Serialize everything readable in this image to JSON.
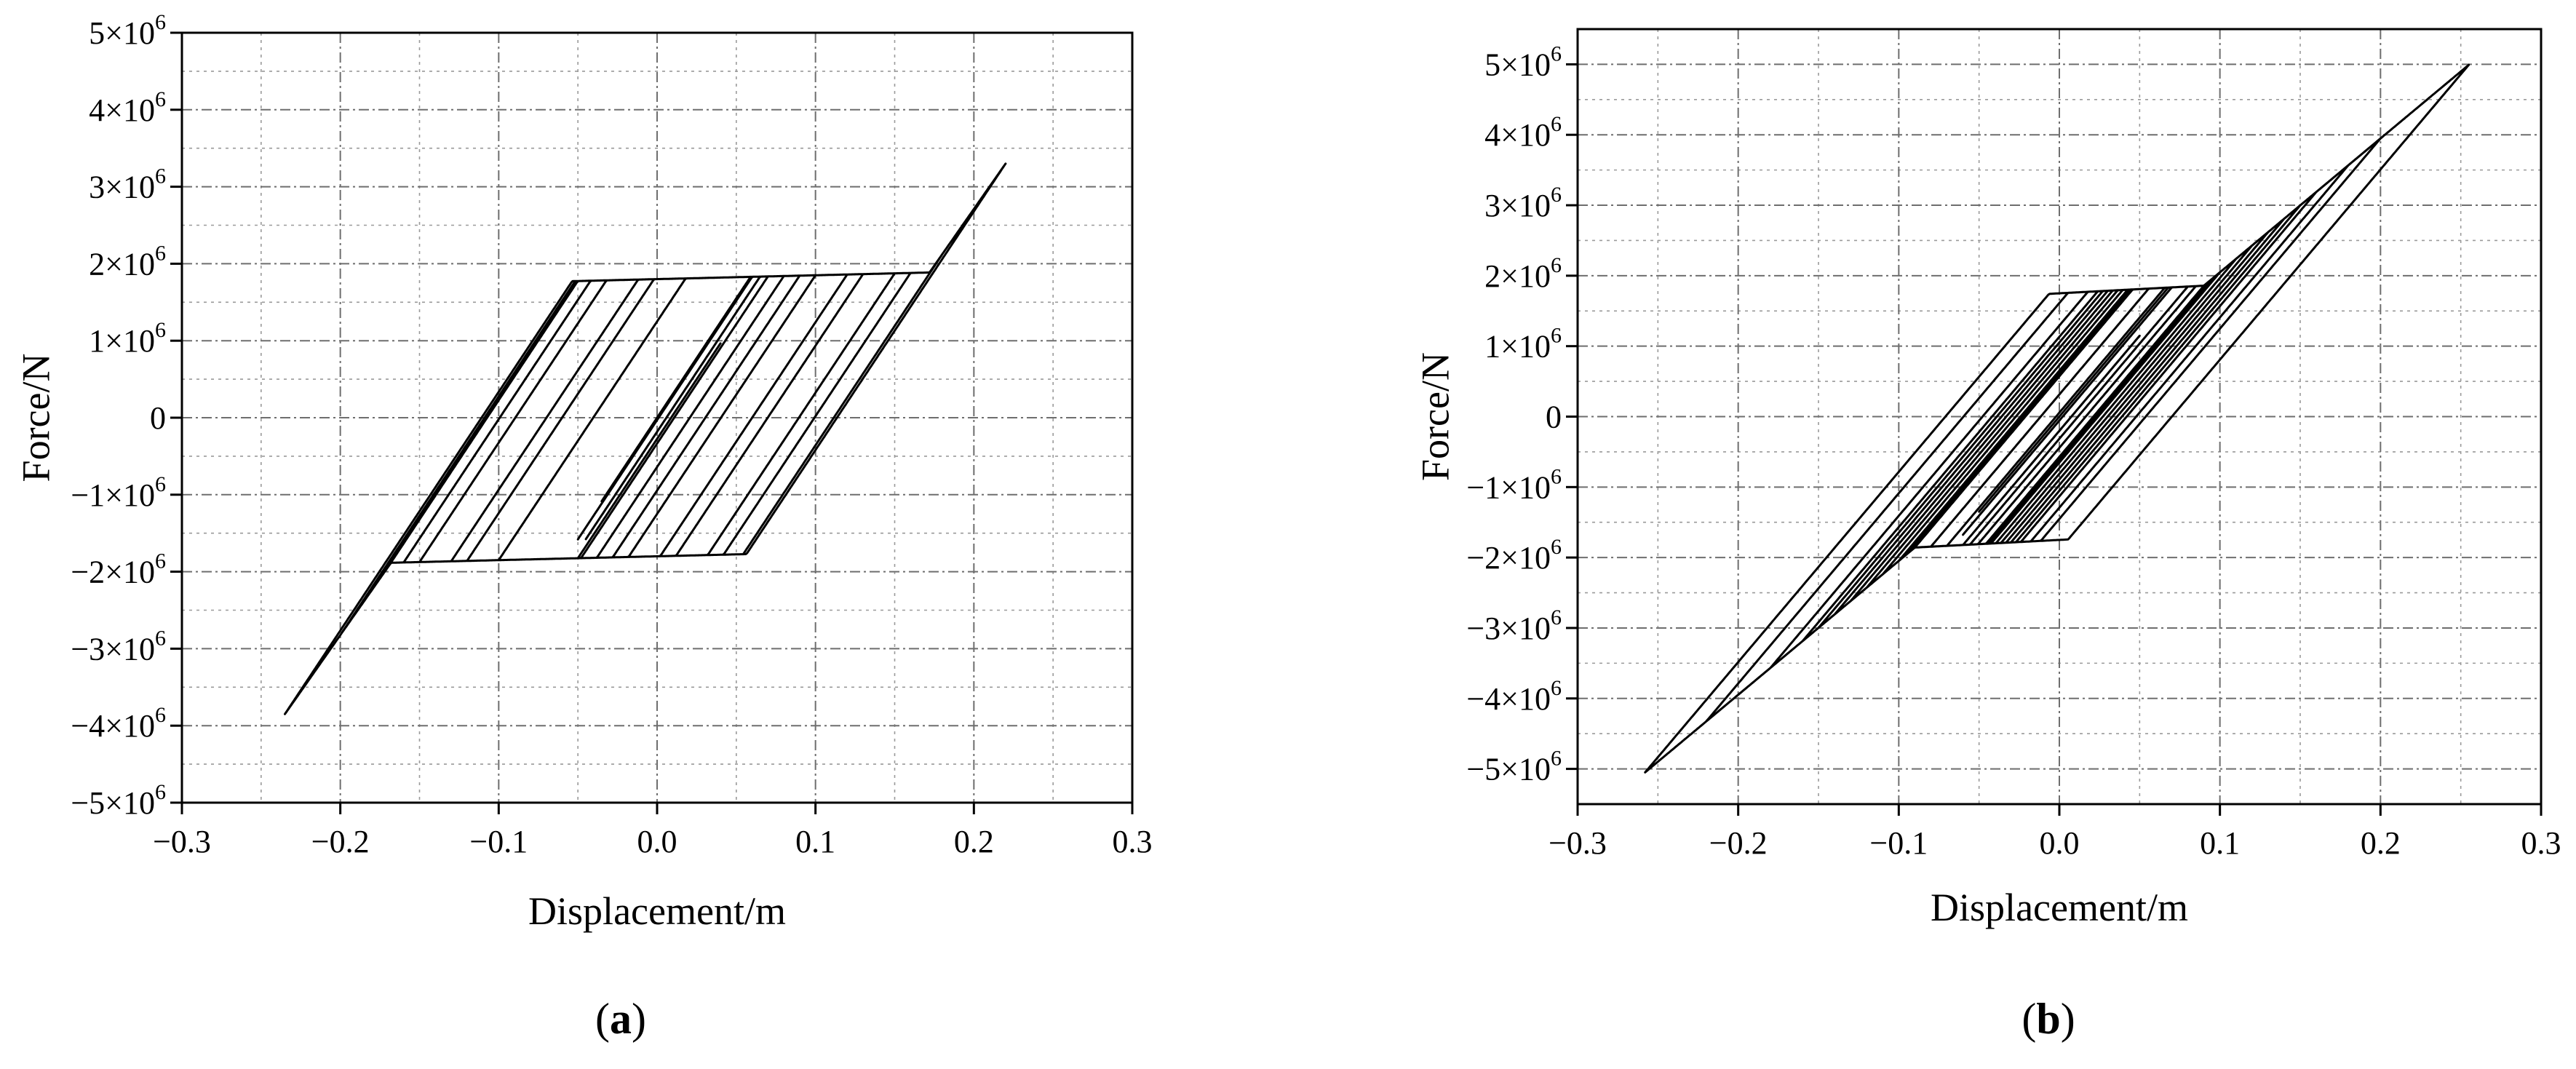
{
  "chart_data": [
    {
      "type": "line",
      "panel_label": "a",
      "xlabel": "Displacement/m",
      "ylabel": "Force/N",
      "xlim": [
        -0.3,
        0.3
      ],
      "ylim": [
        -5000000,
        5000000
      ],
      "x_ticks": [
        -0.3,
        -0.2,
        -0.1,
        0.0,
        0.1,
        0.2,
        0.3
      ],
      "x_tick_labels": [
        "−0.3",
        "−0.2",
        "−0.1",
        "0.0",
        "0.1",
        "0.2",
        "0.3"
      ],
      "y_ticks": [
        -5000000,
        -4000000,
        -3000000,
        -2000000,
        -1000000,
        0,
        1000000,
        2000000,
        3000000,
        4000000,
        5000000
      ],
      "y_tick_mantissas": [
        "−5×10",
        "−4×10",
        "−3×10",
        "−2×10",
        "−1×10",
        "0",
        "1×10",
        "2×10",
        "3×10",
        "4×10",
        "5×10"
      ],
      "y_tick_exponents": [
        "6",
        "6",
        "6",
        "6",
        "6",
        "",
        "6",
        "6",
        "6",
        "6",
        "6"
      ],
      "grid": true,
      "minor_grid": true,
      "line_color": "#000000",
      "model": {
        "yield_force": 1800000,
        "hardening_slope": 500000,
        "elastic_stiffness": 31000000,
        "pos_limit": {
          "x": 0.22,
          "y": 3300000
        },
        "neg_limit": {
          "x": -0.235,
          "y": -3850000
        },
        "pos_knee_x": 0.172,
        "neg_knee_x": -0.168
      },
      "displacement_history": [
        0.0,
        0.03,
        -0.02,
        0.04,
        -0.03,
        0.045,
        -0.025,
        0.05,
        -0.035,
        0.06,
        -0.04,
        0.055,
        -0.05,
        0.065,
        -0.045,
        0.07,
        -0.1,
        0.1,
        -0.12,
        0.09,
        -0.13,
        0.12,
        -0.15,
        0.13,
        -0.16,
        0.15,
        -0.17,
        0.16,
        -0.2,
        0.18,
        -0.235,
        0.22,
        -0.18,
        0.15,
        -0.1,
        0.08,
        -0.05,
        0.04,
        -0.02,
        0.03,
        0.0
      ]
    },
    {
      "type": "line",
      "panel_label": "b",
      "xlabel": "Displacement/m",
      "ylabel": "Force/N",
      "xlim": [
        -0.3,
        0.3
      ],
      "ylim": [
        -5500000,
        5500000
      ],
      "x_ticks": [
        -0.3,
        -0.2,
        -0.1,
        0.0,
        0.1,
        0.2,
        0.3
      ],
      "x_tick_labels": [
        "−0.3",
        "−0.2",
        "−0.1",
        "0.0",
        "0.1",
        "0.2",
        "0.3"
      ],
      "y_ticks": [
        -5000000,
        -4000000,
        -3000000,
        -2000000,
        -1000000,
        0,
        1000000,
        2000000,
        3000000,
        4000000,
        5000000
      ],
      "y_tick_mantissas": [
        "−5×10",
        "−4×10",
        "−3×10",
        "−2×10",
        "−1×10",
        "0",
        "1×10",
        "2×10",
        "3×10",
        "4×10",
        "5×10"
      ],
      "y_tick_exponents": [
        "6",
        "6",
        "6",
        "6",
        "6",
        "",
        "6",
        "6",
        "6",
        "6",
        "6"
      ],
      "grid": true,
      "minor_grid": true,
      "line_color": "#000000",
      "model": {
        "yield_force": 1750000,
        "hardening_slope": 1200000,
        "elastic_stiffness": 27000000,
        "knee_x": 0.09,
        "high_slope": 19000000,
        "pos_limit": {
          "x": 0.255,
          "y": 5000000
        },
        "neg_limit": {
          "x": -0.258,
          "y": -5100000
        }
      },
      "displacement_history": [
        0.0,
        0.04,
        -0.03,
        0.05,
        -0.04,
        0.06,
        -0.05,
        0.07,
        -0.06,
        0.08,
        -0.07,
        0.085,
        -0.08,
        0.09,
        -0.09,
        0.095,
        -0.095,
        0.1,
        -0.1,
        0.11,
        -0.11,
        0.12,
        -0.12,
        0.13,
        -0.13,
        0.14,
        -0.14,
        0.15,
        -0.15,
        0.16,
        -0.16,
        0.18,
        -0.18,
        0.2,
        -0.22,
        0.255,
        -0.258,
        0.2,
        -0.15,
        0.12,
        -0.1,
        0.08,
        -0.06,
        0.05,
        -0.03,
        0.02,
        0.0
      ]
    }
  ]
}
